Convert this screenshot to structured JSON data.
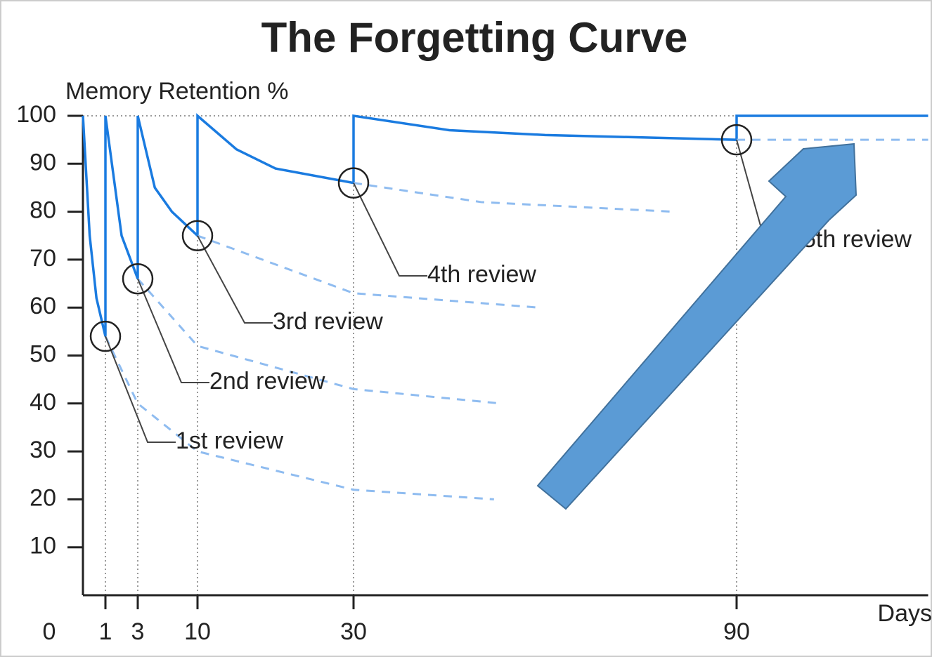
{
  "chart_data": {
    "type": "line",
    "title": "The Forgetting Curve",
    "y_label": "Memory Retention %",
    "x_label": "Days",
    "xlim": [
      0,
      120
    ],
    "ylim": [
      0,
      100
    ],
    "xticks": [
      0,
      1,
      3,
      10,
      30,
      90
    ],
    "yticks": [
      10,
      20,
      30,
      40,
      50,
      60,
      70,
      80,
      90,
      100
    ],
    "series": [
      {
        "name": null,
        "color": "#1a7be0",
        "style": "solid",
        "x": [
          0,
          0.3,
          0.6,
          1,
          1,
          2,
          3,
          3,
          5,
          7,
          10,
          10,
          15,
          20,
          30,
          30,
          45,
          60,
          90,
          90,
          120
        ],
        "values": [
          100,
          75,
          62,
          54,
          100,
          75,
          66,
          100,
          85,
          80,
          75,
          100,
          93,
          89,
          86,
          100,
          97,
          96,
          95,
          100,
          100
        ]
      },
      {
        "name": null,
        "color": "#8fbcf0",
        "style": "dashed",
        "x": [
          1,
          3,
          10,
          30,
          52
        ],
        "values": [
          54,
          40,
          30,
          22,
          20
        ]
      },
      {
        "name": null,
        "color": "#8fbcf0",
        "style": "dashed",
        "x": [
          3,
          10,
          30,
          53
        ],
        "values": [
          66,
          52,
          43,
          40
        ]
      },
      {
        "name": null,
        "color": "#8fbcf0",
        "style": "dashed",
        "x": [
          10,
          30,
          59
        ],
        "values": [
          75,
          63,
          60
        ]
      },
      {
        "name": null,
        "color": "#8fbcf0",
        "style": "dashed",
        "x": [
          30,
          50,
          80
        ],
        "values": [
          86,
          82,
          80
        ]
      },
      {
        "name": null,
        "color": "#8fbcf0",
        "style": "dashed",
        "x": [
          90,
          120
        ],
        "values": [
          95,
          95
        ]
      }
    ],
    "reviews": [
      {
        "label": "1st review",
        "x": 1,
        "y": 54
      },
      {
        "label": "2nd review",
        "x": 3,
        "y": 66
      },
      {
        "label": "3rd review",
        "x": 10,
        "y": 75
      },
      {
        "label": "4th review",
        "x": 30,
        "y": 86
      },
      {
        "label": "5th review",
        "x": 90,
        "y": 95
      }
    ]
  }
}
